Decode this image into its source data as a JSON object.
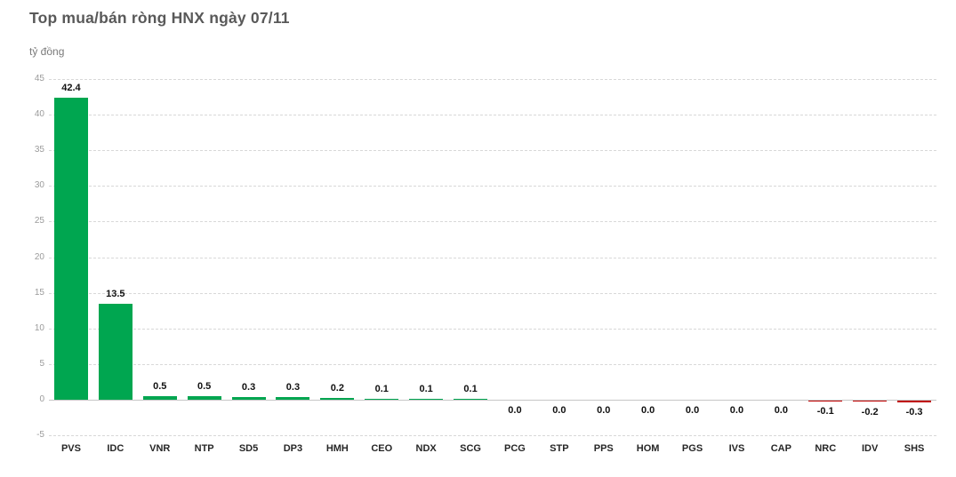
{
  "header": {
    "title": "Top mua/bán ròng HNX ngày 07/11",
    "unit_label": "tỷ đồng"
  },
  "colors": {
    "positive_bar": "#00a650",
    "negative_bar": "#c00000",
    "gridline": "#d8d8d8",
    "baseline": "#c6c6c6",
    "title_text": "#595959",
    "axis_tick_text": "#9b9b9b",
    "value_label_text": "#111111",
    "category_label_text": "#262626",
    "background": "#ffffff"
  },
  "chart_data": {
    "type": "bar",
    "title": "Top mua/bán ròng HNX ngày 07/11",
    "xlabel": "",
    "ylabel": "tỷ đồng",
    "categories": [
      "PVS",
      "IDC",
      "VNR",
      "NTP",
      "SD5",
      "DP3",
      "HMH",
      "CEO",
      "NDX",
      "SCG",
      "PCG",
      "STP",
      "PPS",
      "HOM",
      "PGS",
      "IVS",
      "CAP",
      "NRC",
      "IDV",
      "SHS"
    ],
    "values": [
      42.4,
      13.5,
      0.5,
      0.5,
      0.3,
      0.3,
      0.2,
      0.1,
      0.1,
      0.1,
      0.0,
      0.0,
      0.0,
      0.0,
      0.0,
      0.0,
      0.0,
      -0.1,
      -0.2,
      -0.3
    ],
    "value_labels": [
      "42.4",
      "13.5",
      "0.5",
      "0.5",
      "0.3",
      "0.3",
      "0.2",
      "0.1",
      "0.1",
      "0.1",
      "0.0",
      "0.0",
      "0.0",
      "0.0",
      "0.0",
      "0.0",
      "0.0",
      "-0.1",
      "-0.2",
      "-0.3"
    ],
    "ylim": [
      -5,
      45
    ],
    "yticks": [
      45,
      40,
      35,
      30,
      25,
      20,
      15,
      10,
      5,
      0,
      -5
    ],
    "grid": true,
    "gridline_style": "dashed",
    "legend": false,
    "bar_color_positive": "#00a650",
    "bar_color_negative": "#c00000"
  }
}
